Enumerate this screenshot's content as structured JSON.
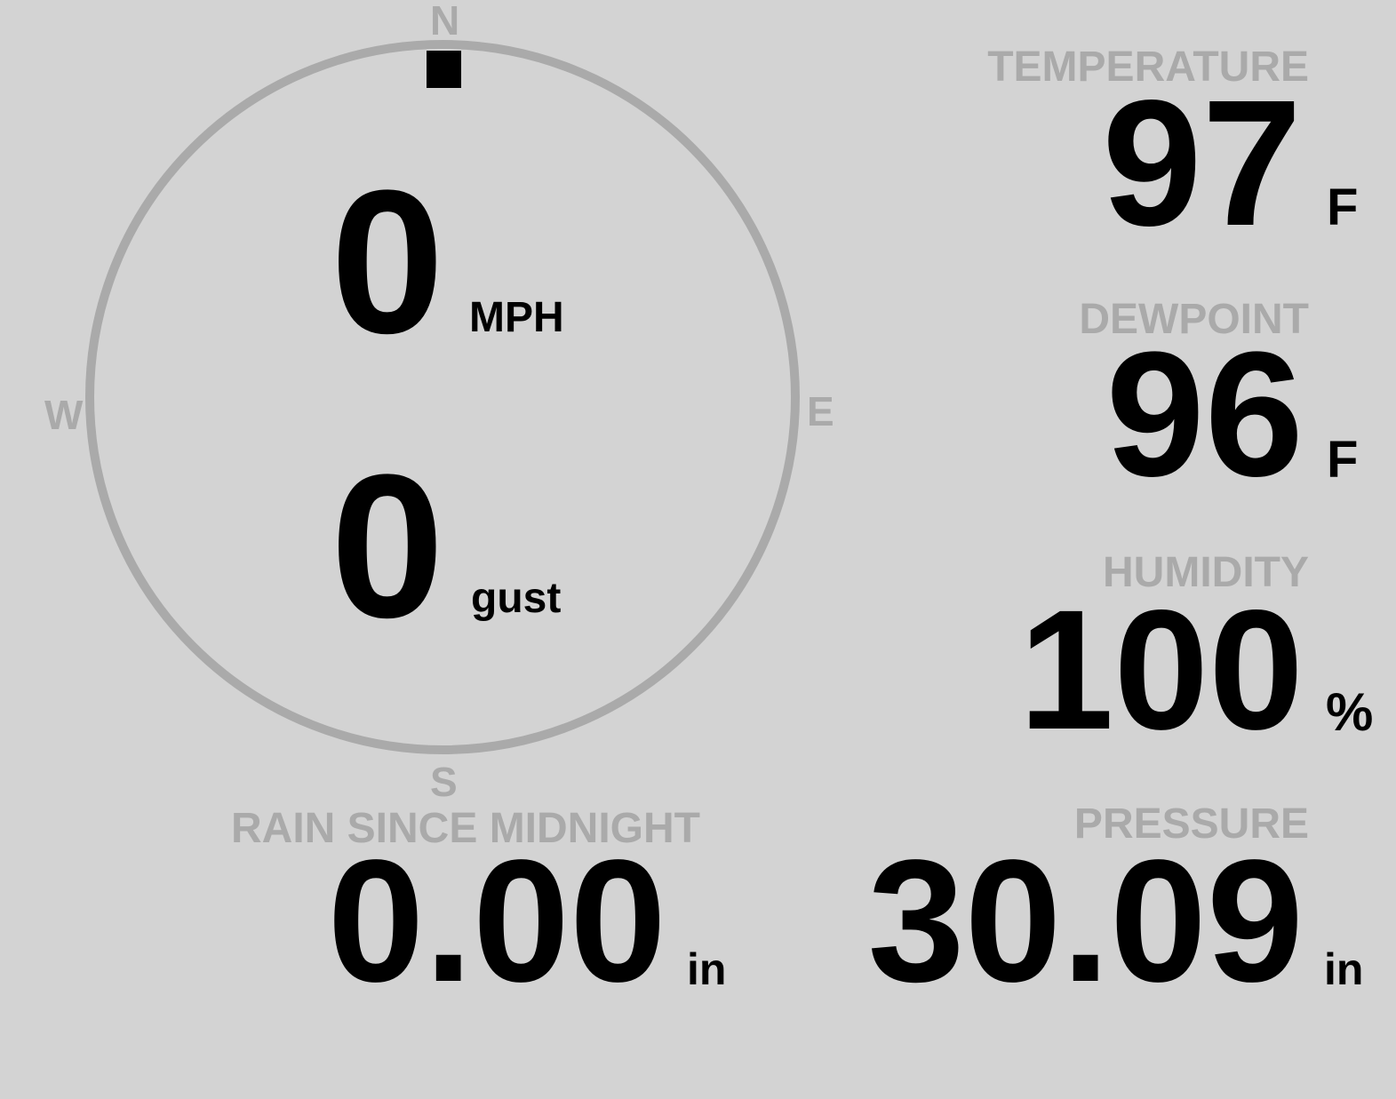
{
  "colors": {
    "background": "#d3d3d3",
    "label": "#aaaaaa",
    "value": "#000000"
  },
  "wind": {
    "compass": {
      "north": "N",
      "east": "E",
      "south": "S",
      "west": "W"
    },
    "direction_deg": 0,
    "speed": "0",
    "speed_unit": "MPH",
    "gust": "0",
    "gust_unit": "gust"
  },
  "temperature": {
    "label": "TEMPERATURE",
    "value": "97",
    "unit": "F"
  },
  "dewpoint": {
    "label": "DEWPOINT",
    "value": "96",
    "unit": "F"
  },
  "humidity": {
    "label": "HUMIDITY",
    "value": "100",
    "unit": "%"
  },
  "rain": {
    "label": "RAIN SINCE MIDNIGHT",
    "value": "0.00",
    "unit": "in"
  },
  "pressure": {
    "label": "PRESSURE",
    "value": "30.09",
    "unit": "in"
  }
}
